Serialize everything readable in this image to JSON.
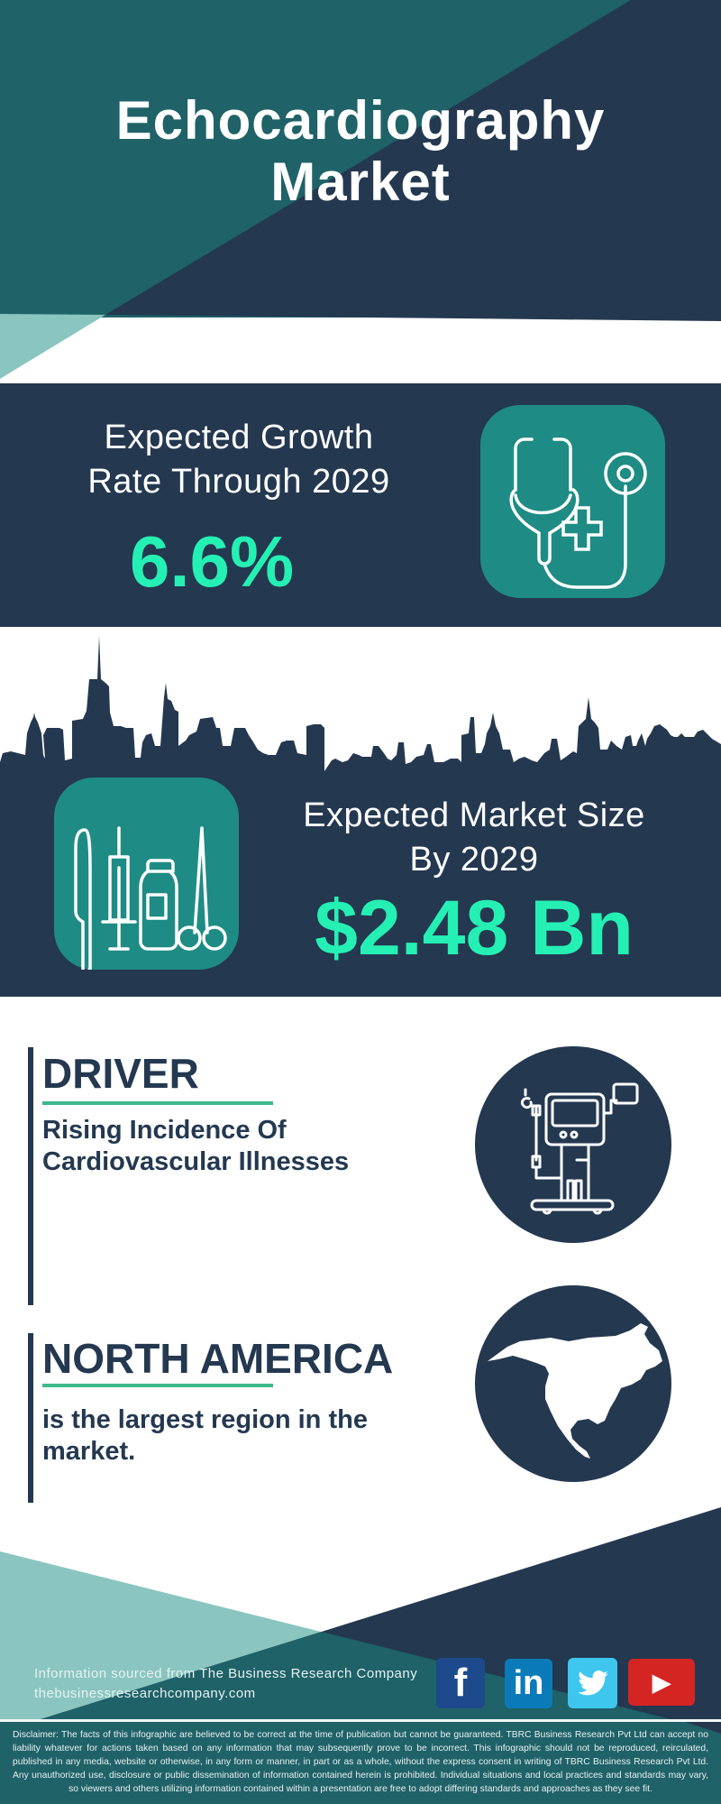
{
  "header": {
    "title_line1": "Echocardiography",
    "title_line2": "Market"
  },
  "growth": {
    "label_line1": "Expected Growth",
    "label_line2": "Rate Through 2029",
    "value": "6.6%",
    "icon": "stethoscope-icon"
  },
  "market_size": {
    "label_line1": "Expected Market Size",
    "label_line2": "By 2029",
    "value": "$2.48 Bn",
    "icon": "medical-instruments-icon"
  },
  "driver": {
    "title": "DRIVER",
    "text_line1": "Rising Incidence Of",
    "text_line2": "Cardiovascular Illnesses",
    "icon": "medical-monitor-icon"
  },
  "region": {
    "title": "NORTH AMERICA",
    "text_line1": "is the largest region in the",
    "text_line2": "market.",
    "icon": "north-america-map-icon"
  },
  "footer": {
    "source": "Information sourced from The Business Research Company",
    "website": "thebusinessresearchcompany.com",
    "social": [
      {
        "name": "facebook",
        "glyph": "f",
        "color": "#1c4a8c"
      },
      {
        "name": "linkedin",
        "glyph": "in",
        "color": "#0a7bb8"
      },
      {
        "name": "twitter",
        "glyph": "twitter",
        "color": "#3ec6ee"
      },
      {
        "name": "youtube",
        "glyph": "▶",
        "color": "#d52523"
      }
    ],
    "disclaimer": "Disclaimer: The facts of this infographic are believed to be correct at the time of publication but cannot be guaranteed. TBRC Business Research Pvt Ltd can accept no liability whatever for actions taken based on any information that may subsequently prove to be incorrect. This infographic should not be reproduced, reirculated, published in any media, website or otherwise, in any form or manner, in part or as a whole, without the express consent in writing of TBRC Business Research Pvt Ltd. Any unauthorized use, disclosure or public dissemination of information contained herein is prohibited. Individual situations and local practices and standards may vary, so viewers and others utilizing information contained within a presentation are free to adopt differing standards and approaches as they see fit."
  },
  "colors": {
    "navy": "#243850",
    "teal": "#1f6268",
    "box_teal": "#1e8c84",
    "accent_green": "#25f0b4",
    "light_teal": "#8ac5c0",
    "underline_green": "#3cb98a"
  }
}
